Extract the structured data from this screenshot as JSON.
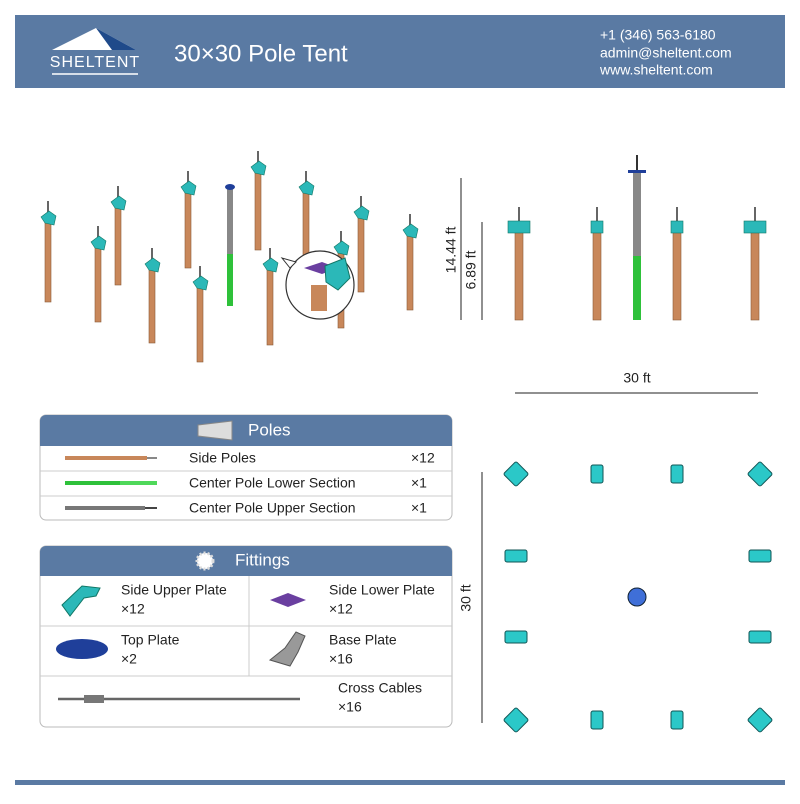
{
  "header": {
    "logo": "SHELTENT",
    "title": "30×30 Pole Tent",
    "contact": [
      "+1 (346) 563-6180",
      "admin@sheltent.com",
      "www.sheltent.com"
    ]
  },
  "elevation": {
    "overall_height": "14.44 ft",
    "side_height": "6.89 ft",
    "width": "30 ft"
  },
  "plan": {
    "depth": "30 ft"
  },
  "poles": {
    "title": "Poles",
    "rows": [
      {
        "name": "Side Poles",
        "qty": "×12"
      },
      {
        "name": "Center Pole Lower Section",
        "qty": "×1"
      },
      {
        "name": "Center Pole Upper Section",
        "qty": "×1"
      }
    ]
  },
  "fittings": {
    "title": "Fittings",
    "items": [
      {
        "name": "Side Upper Plate",
        "qty": "×12"
      },
      {
        "name": "Side Lower Plate",
        "qty": "×12"
      },
      {
        "name": "Top Plate",
        "qty": "×2"
      },
      {
        "name": "Base Plate",
        "qty": "×16"
      },
      {
        "name": "Cross Cables",
        "qty": "×16"
      }
    ]
  }
}
